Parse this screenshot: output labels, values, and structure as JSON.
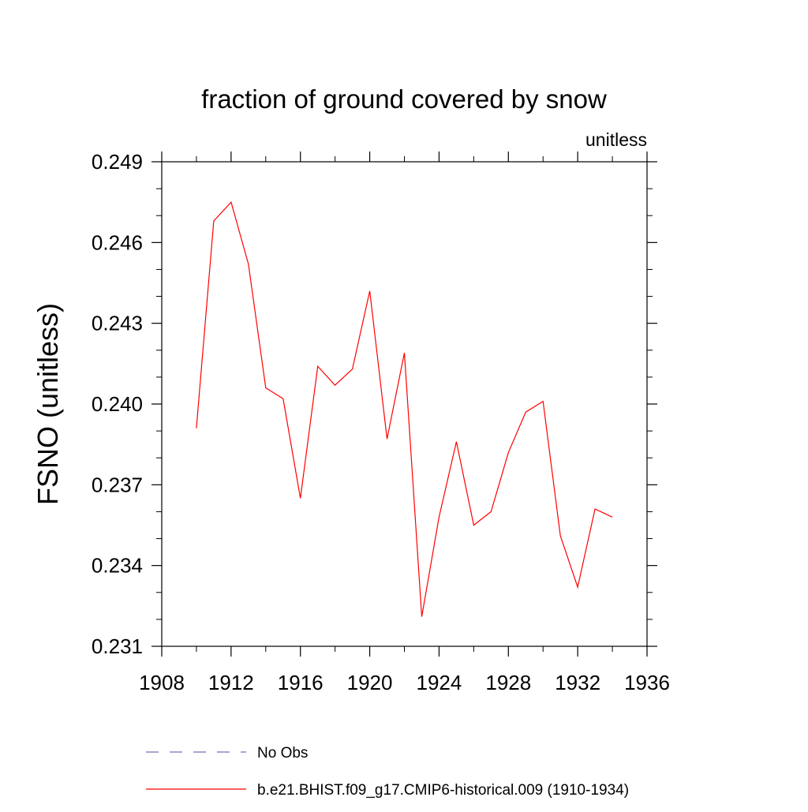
{
  "chart_data": {
    "type": "line",
    "title": "fraction of ground covered by snow",
    "units_label": "unitless",
    "ylabel": "FSNO  (unitless)",
    "xlabel": "",
    "xlim": [
      1908,
      1936
    ],
    "ylim": [
      0.231,
      0.249
    ],
    "x_ticks": [
      1908,
      1912,
      1916,
      1920,
      1924,
      1928,
      1932,
      1936
    ],
    "x_tick_labels": [
      "1908",
      "1912",
      "1916",
      "1920",
      "1924",
      "1928",
      "1932",
      "1936"
    ],
    "y_ticks": [
      0.231,
      0.234,
      0.237,
      0.24,
      0.243,
      0.246,
      0.249
    ],
    "y_tick_labels": [
      "0.231",
      "0.234",
      "0.237",
      "0.240",
      "0.243",
      "0.246",
      "0.249"
    ],
    "grid": false,
    "legend_position": "bottom",
    "series": [
      {
        "name": "b.e21.BHIST.f09_g17.CMIP6-historical.009 (1910-1934)",
        "color": "#ff0000",
        "style": "solid",
        "x": [
          1910,
          1911,
          1912,
          1913,
          1914,
          1915,
          1916,
          1917,
          1918,
          1919,
          1920,
          1921,
          1922,
          1923,
          1924,
          1925,
          1926,
          1927,
          1928,
          1929,
          1930,
          1931,
          1932,
          1933,
          1934
        ],
        "values": [
          0.2391,
          0.2468,
          0.2475,
          0.2452,
          0.2406,
          0.2402,
          0.2365,
          0.2414,
          0.2407,
          0.2413,
          0.2442,
          0.2387,
          0.2419,
          0.2321,
          0.2358,
          0.2386,
          0.2355,
          0.236,
          0.2382,
          0.2397,
          0.2401,
          0.2351,
          0.2332,
          0.2361,
          0.2358
        ]
      }
    ],
    "legend": [
      {
        "label": "No Obs",
        "color": "#7b6fb3",
        "style": "dashed"
      },
      {
        "label": "b.e21.BHIST.f09_g17.CMIP6-historical.009 (1910-1934)",
        "color": "#ff0000",
        "style": "solid"
      }
    ]
  }
}
